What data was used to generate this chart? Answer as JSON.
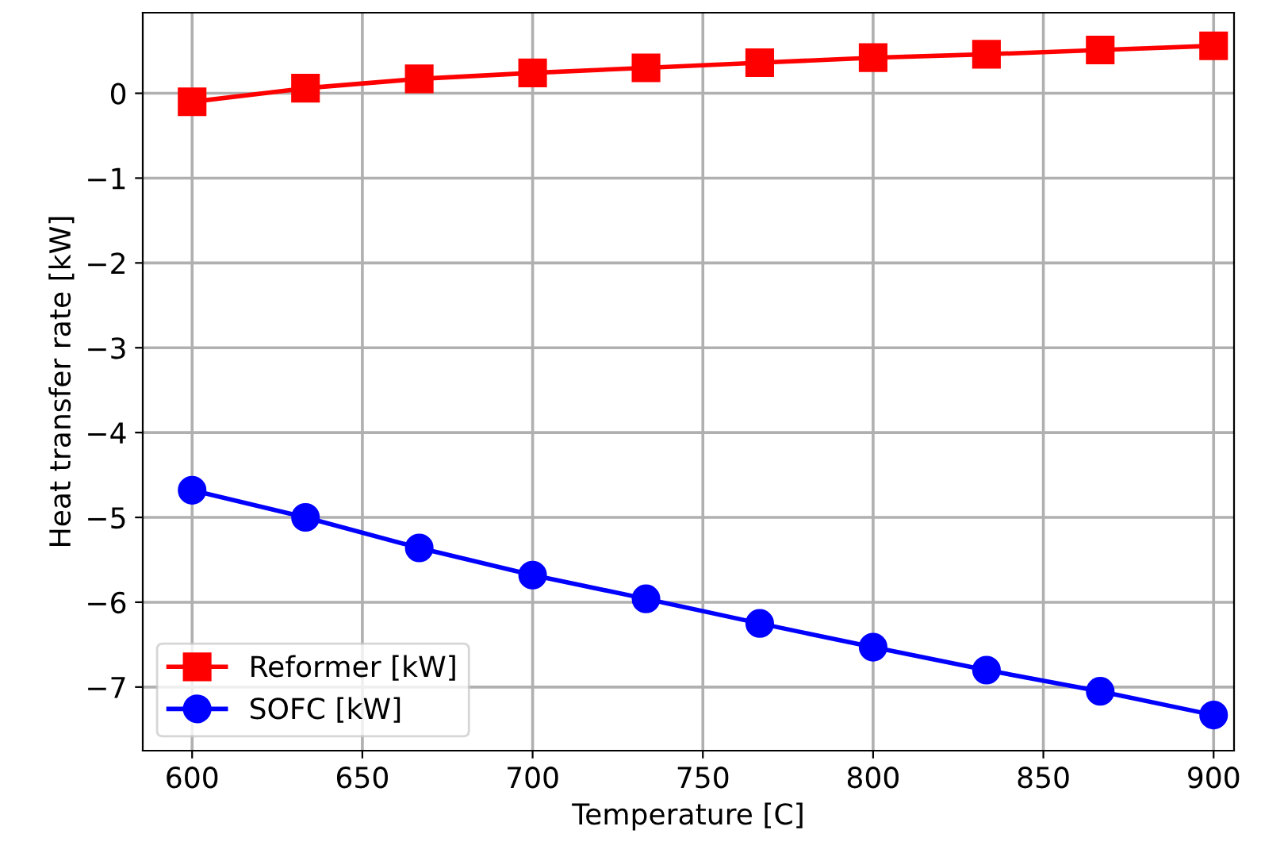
{
  "chart_data": {
    "type": "line",
    "xlabel": "Temperature [C]",
    "ylabel": "Heat transfer rate [kW]",
    "x": [
      600,
      633.3,
      666.7,
      700,
      733.3,
      766.7,
      800,
      833.3,
      866.7,
      900
    ],
    "series": [
      {
        "name": "Reformer [kW]",
        "color": "#ff0000",
        "marker": "square",
        "values": [
          -0.1,
          0.06,
          0.17,
          0.24,
          0.3,
          0.36,
          0.42,
          0.46,
          0.51,
          0.56
        ]
      },
      {
        "name": "SOFC [kW]",
        "color": "#0000ff",
        "marker": "circle",
        "values": [
          -4.68,
          -5.0,
          -5.36,
          -5.68,
          -5.96,
          -6.25,
          -6.53,
          -6.8,
          -7.05,
          -7.33
        ]
      }
    ],
    "xlim": [
      585.5,
      906
    ],
    "ylim": [
      -7.75,
      0.95
    ],
    "xticks": [
      600,
      650,
      700,
      750,
      800,
      850,
      900
    ],
    "yticks": [
      {
        "value": 0,
        "label": "0"
      },
      {
        "value": -1,
        "label": "−1"
      },
      {
        "value": -2,
        "label": "−2"
      },
      {
        "value": -3,
        "label": "−3"
      },
      {
        "value": -4,
        "label": "−4"
      },
      {
        "value": -5,
        "label": "−5"
      },
      {
        "value": -6,
        "label": "−6"
      },
      {
        "value": -7,
        "label": "−7"
      }
    ],
    "grid": true,
    "legend": "bottom left",
    "line_style": "solid"
  }
}
